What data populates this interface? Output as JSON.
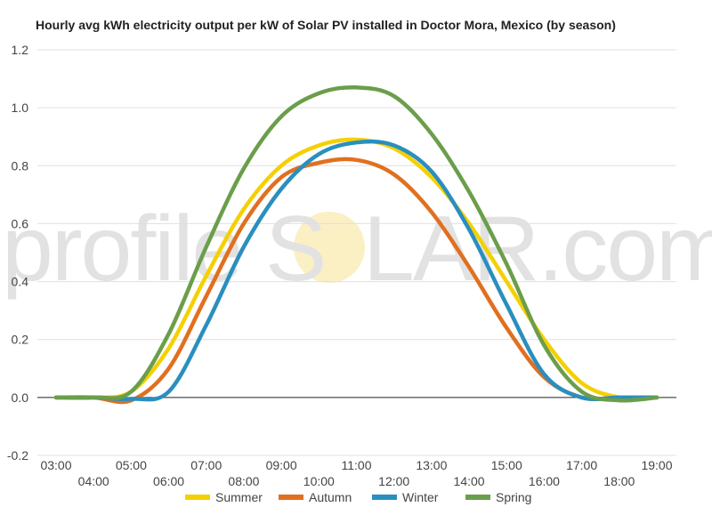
{
  "chart_data": {
    "type": "line",
    "title": "Hourly avg kWh electricity output per kW of Solar PV installed in Doctor Mora, Mexico (by season)",
    "xlabel": "",
    "ylabel": "",
    "x": [
      "03:00",
      "04:00",
      "05:00",
      "06:00",
      "07:00",
      "08:00",
      "09:00",
      "10:00",
      "11:00",
      "12:00",
      "13:00",
      "14:00",
      "15:00",
      "16:00",
      "17:00",
      "18:00",
      "19:00"
    ],
    "ylim": [
      -0.2,
      1.2
    ],
    "yticks": [
      "-0.2",
      "0.0",
      "0.2",
      "0.4",
      "0.6",
      "0.8",
      "1.0",
      "1.2"
    ],
    "grid": true,
    "legend": "bottom",
    "series": [
      {
        "name": "Summer",
        "color": "#f5d000",
        "values": [
          0,
          0,
          0.02,
          0.17,
          0.42,
          0.65,
          0.8,
          0.87,
          0.89,
          0.86,
          0.76,
          0.6,
          0.4,
          0.2,
          0.05,
          0,
          0
        ]
      },
      {
        "name": "Autumn",
        "color": "#e07020",
        "values": [
          0,
          0,
          -0.01,
          0.1,
          0.35,
          0.6,
          0.76,
          0.81,
          0.82,
          0.77,
          0.64,
          0.45,
          0.24,
          0.07,
          0.0,
          0,
          0
        ]
      },
      {
        "name": "Winter",
        "color": "#2a8fbf",
        "values": [
          0,
          0,
          -0.005,
          0.02,
          0.25,
          0.52,
          0.72,
          0.84,
          0.88,
          0.87,
          0.78,
          0.58,
          0.32,
          0.08,
          0.0,
          0,
          0
        ]
      },
      {
        "name": "Spring",
        "color": "#6b9e4a",
        "values": [
          0,
          0,
          0.02,
          0.22,
          0.52,
          0.79,
          0.97,
          1.05,
          1.07,
          1.04,
          0.91,
          0.71,
          0.46,
          0.18,
          0.02,
          -0.01,
          0
        ]
      }
    ]
  },
  "watermark": {
    "left": "profile",
    "right": "LAR.com",
    "center_letter": "S"
  }
}
